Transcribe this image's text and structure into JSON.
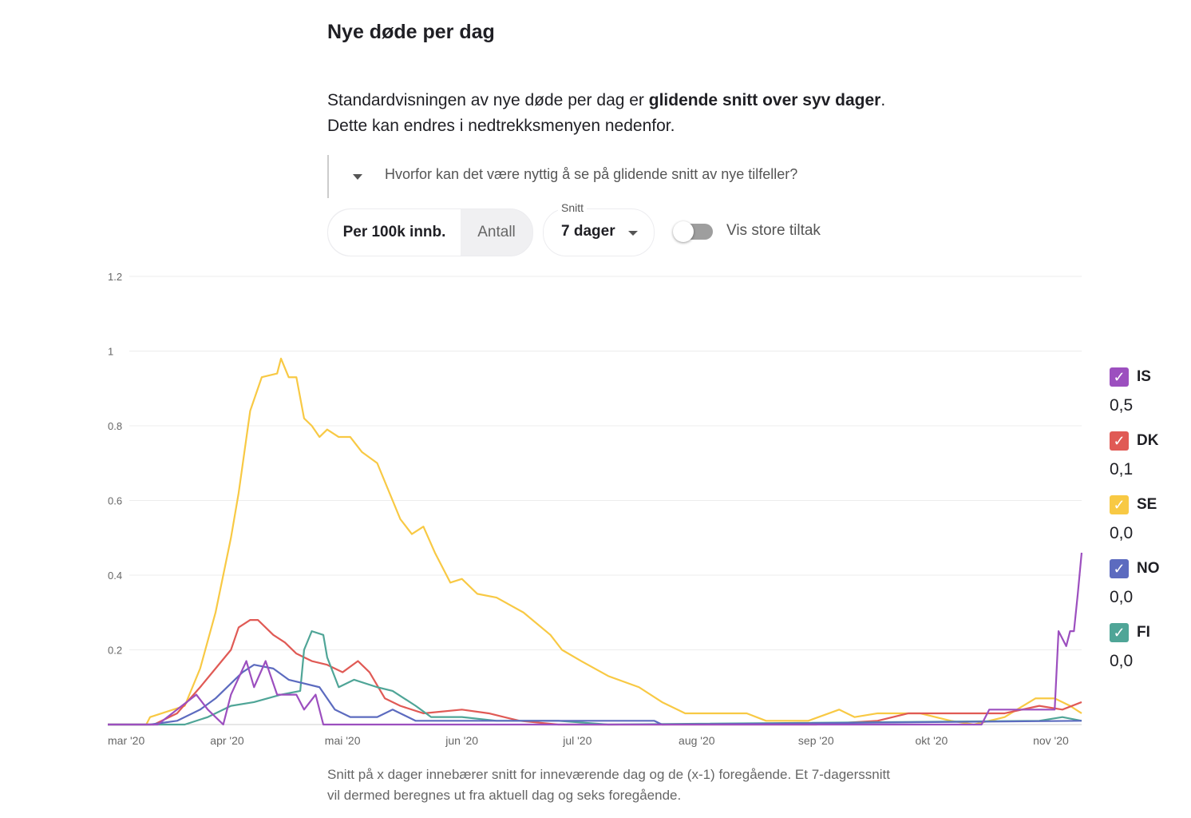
{
  "title": "Nye døde per dag",
  "intro": {
    "pre": "Standardvisningen av nye døde per dag er ",
    "bold": "glidende snitt over syv dager",
    "post": ". Dette kan endres i nedtrekksmenyen nedenfor."
  },
  "details_question": "Hvorfor kan det være nyttig å se på glidende snitt av nye tilfeller?",
  "controls": {
    "per_label": "Per 100k innb.",
    "count_label": "Antall",
    "avg_label": "Snitt",
    "avg_value": "7 dager",
    "toggle_label": "Vis store tiltak",
    "toggle_on": false
  },
  "legend": [
    {
      "code": "IS",
      "value": "0,5",
      "color": "#9c4fbf"
    },
    {
      "code": "DK",
      "value": "0,1",
      "color": "#e05a55"
    },
    {
      "code": "SE",
      "value": "0,0",
      "color": "#f8c944"
    },
    {
      "code": "NO",
      "value": "0,0",
      "color": "#5c6bbf"
    },
    {
      "code": "FI",
      "value": "0,0",
      "color": "#4fa597"
    }
  ],
  "footnote": "Snitt på x dager innebærer snitt for inneværende dag og de (x-1) foregående. Et 7-dagerssnitt vil dermed beregnes ut fra aktuell dag og seks foregående.",
  "chart_data": {
    "type": "line",
    "title": "Nye døde per dag",
    "xlabel": "",
    "ylabel": "",
    "x_unit": "days since 1 Mar 2020",
    "xlim": [
      0,
      253
    ],
    "ylim": [
      0,
      1.2
    ],
    "yticks": [
      {
        "v": 0.2,
        "label": "0.2"
      },
      {
        "v": 0.4,
        "label": "0.4"
      },
      {
        "v": 0.6,
        "label": "0.6"
      },
      {
        "v": 0.8,
        "label": "0.8"
      },
      {
        "v": 1,
        "label": "1"
      },
      {
        "v": 1.2,
        "label": "1.2"
      }
    ],
    "xticks": [
      {
        "d": 0,
        "label": "mar '20"
      },
      {
        "d": 31,
        "label": "apr '20"
      },
      {
        "d": 61,
        "label": "mai '20"
      },
      {
        "d": 92,
        "label": "jun '20"
      },
      {
        "d": 122,
        "label": "jul '20"
      },
      {
        "d": 153,
        "label": "aug '20"
      },
      {
        "d": 184,
        "label": "sep '20"
      },
      {
        "d": 214,
        "label": "okt '20"
      },
      {
        "d": 245,
        "label": "nov '20"
      }
    ],
    "grid": true,
    "series": [
      {
        "name": "SE",
        "color": "#f8c944",
        "points": [
          [
            0,
            0
          ],
          [
            10,
            0
          ],
          [
            11,
            0.02
          ],
          [
            20,
            0.05
          ],
          [
            24,
            0.15
          ],
          [
            28,
            0.3
          ],
          [
            32,
            0.5
          ],
          [
            34,
            0.62
          ],
          [
            37,
            0.84
          ],
          [
            40,
            0.93
          ],
          [
            44,
            0.94
          ],
          [
            45,
            0.98
          ],
          [
            47,
            0.93
          ],
          [
            49,
            0.93
          ],
          [
            51,
            0.82
          ],
          [
            53,
            0.8
          ],
          [
            55,
            0.77
          ],
          [
            57,
            0.79
          ],
          [
            60,
            0.77
          ],
          [
            63,
            0.77
          ],
          [
            66,
            0.73
          ],
          [
            70,
            0.7
          ],
          [
            72,
            0.65
          ],
          [
            74,
            0.6
          ],
          [
            76,
            0.55
          ],
          [
            79,
            0.51
          ],
          [
            82,
            0.53
          ],
          [
            85,
            0.46
          ],
          [
            89,
            0.38
          ],
          [
            92,
            0.39
          ],
          [
            96,
            0.35
          ],
          [
            101,
            0.34
          ],
          [
            108,
            0.3
          ],
          [
            115,
            0.24
          ],
          [
            118,
            0.2
          ],
          [
            123,
            0.17
          ],
          [
            130,
            0.13
          ],
          [
            138,
            0.1
          ],
          [
            144,
            0.06
          ],
          [
            150,
            0.03
          ],
          [
            157,
            0.03
          ],
          [
            166,
            0.03
          ],
          [
            171,
            0.01
          ],
          [
            182,
            0.01
          ],
          [
            190,
            0.04
          ],
          [
            194,
            0.02
          ],
          [
            200,
            0.03
          ],
          [
            211,
            0.03
          ],
          [
            219,
            0.01
          ],
          [
            225,
            0
          ],
          [
            233,
            0.02
          ],
          [
            241,
            0.07
          ],
          [
            246,
            0.07
          ],
          [
            250,
            0.05
          ],
          [
            253,
            0.03
          ]
        ]
      },
      {
        "name": "DK",
        "color": "#e05a55",
        "points": [
          [
            0,
            0
          ],
          [
            12,
            0
          ],
          [
            18,
            0.03
          ],
          [
            24,
            0.1
          ],
          [
            28,
            0.15
          ],
          [
            32,
            0.2
          ],
          [
            34,
            0.26
          ],
          [
            37,
            0.28
          ],
          [
            39,
            0.28
          ],
          [
            43,
            0.24
          ],
          [
            46,
            0.22
          ],
          [
            49,
            0.19
          ],
          [
            53,
            0.17
          ],
          [
            57,
            0.16
          ],
          [
            61,
            0.14
          ],
          [
            65,
            0.17
          ],
          [
            68,
            0.14
          ],
          [
            72,
            0.07
          ],
          [
            76,
            0.05
          ],
          [
            82,
            0.03
          ],
          [
            92,
            0.04
          ],
          [
            99,
            0.03
          ],
          [
            107,
            0.01
          ],
          [
            117,
            0
          ],
          [
            184,
            0
          ],
          [
            200,
            0.01
          ],
          [
            208,
            0.03
          ],
          [
            221,
            0.03
          ],
          [
            233,
            0.03
          ],
          [
            242,
            0.05
          ],
          [
            248,
            0.04
          ],
          [
            253,
            0.06
          ]
        ]
      },
      {
        "name": "FI",
        "color": "#4fa597",
        "points": [
          [
            0,
            0
          ],
          [
            20,
            0
          ],
          [
            26,
            0.02
          ],
          [
            32,
            0.05
          ],
          [
            38,
            0.06
          ],
          [
            45,
            0.08
          ],
          [
            50,
            0.09
          ],
          [
            51,
            0.2
          ],
          [
            53,
            0.25
          ],
          [
            56,
            0.24
          ],
          [
            57,
            0.18
          ],
          [
            60,
            0.1
          ],
          [
            64,
            0.12
          ],
          [
            70,
            0.1
          ],
          [
            74,
            0.09
          ],
          [
            80,
            0.05
          ],
          [
            84,
            0.02
          ],
          [
            92,
            0.02
          ],
          [
            101,
            0.01
          ],
          [
            117,
            0.01
          ],
          [
            130,
            0
          ],
          [
            242,
            0.01
          ],
          [
            248,
            0.02
          ],
          [
            253,
            0.01
          ]
        ]
      },
      {
        "name": "NO",
        "color": "#5c6bbf",
        "points": [
          [
            0,
            0
          ],
          [
            11,
            0
          ],
          [
            18,
            0.01
          ],
          [
            24,
            0.04
          ],
          [
            28,
            0.07
          ],
          [
            32,
            0.11
          ],
          [
            35,
            0.14
          ],
          [
            38,
            0.16
          ],
          [
            43,
            0.15
          ],
          [
            47,
            0.12
          ],
          [
            51,
            0.11
          ],
          [
            55,
            0.1
          ],
          [
            59,
            0.04
          ],
          [
            63,
            0.02
          ],
          [
            70,
            0.02
          ],
          [
            74,
            0.04
          ],
          [
            80,
            0.01
          ],
          [
            142,
            0.01
          ],
          [
            144,
            0
          ],
          [
            253,
            0.01
          ]
        ]
      },
      {
        "name": "IS",
        "color": "#9c4fbf",
        "points": [
          [
            0,
            0
          ],
          [
            13,
            0
          ],
          [
            18,
            0.04
          ],
          [
            23,
            0.08
          ],
          [
            26,
            0.04
          ],
          [
            30,
            0
          ],
          [
            32,
            0.08
          ],
          [
            36,
            0.17
          ],
          [
            38,
            0.1
          ],
          [
            41,
            0.17
          ],
          [
            44,
            0.08
          ],
          [
            49,
            0.08
          ],
          [
            51,
            0.04
          ],
          [
            54,
            0.08
          ],
          [
            56,
            0
          ],
          [
            227,
            0
          ],
          [
            229,
            0.04
          ],
          [
            234,
            0.04
          ],
          [
            242,
            0.04
          ],
          [
            246,
            0.04
          ],
          [
            247,
            0.25
          ],
          [
            249,
            0.21
          ],
          [
            250,
            0.25
          ],
          [
            251,
            0.25
          ],
          [
            252,
            0.35
          ],
          [
            253,
            0.46
          ]
        ]
      }
    ]
  }
}
